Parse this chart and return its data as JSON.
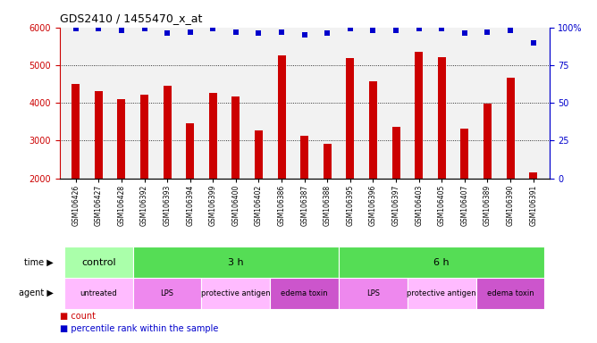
{
  "title": "GDS2410 / 1455470_x_at",
  "samples": [
    "GSM106426",
    "GSM106427",
    "GSM106428",
    "GSM106392",
    "GSM106393",
    "GSM106394",
    "GSM106399",
    "GSM106400",
    "GSM106402",
    "GSM106386",
    "GSM106387",
    "GSM106388",
    "GSM106395",
    "GSM106396",
    "GSM106397",
    "GSM106403",
    "GSM106405",
    "GSM106407",
    "GSM106389",
    "GSM106390",
    "GSM106391"
  ],
  "counts": [
    4500,
    4320,
    4100,
    4220,
    4460,
    3450,
    4260,
    4160,
    3280,
    5250,
    3130,
    2920,
    5190,
    4580,
    3370,
    5350,
    5210,
    3330,
    3970,
    4660,
    2150
  ],
  "percentile_ranks": [
    99,
    99,
    98,
    99,
    96,
    97,
    99,
    97,
    96,
    97,
    95,
    96,
    99,
    98,
    98,
    99,
    99,
    96,
    97,
    98,
    90
  ],
  "ylim": [
    2000,
    6000
  ],
  "yticks": [
    2000,
    3000,
    4000,
    5000,
    6000
  ],
  "right_yticks": [
    0,
    25,
    50,
    75,
    100
  ],
  "time_groups": [
    {
      "label": "control",
      "start": 0,
      "end": 3,
      "color": "#aaffaa"
    },
    {
      "label": "3 h",
      "start": 3,
      "end": 12,
      "color": "#55dd55"
    },
    {
      "label": "6 h",
      "start": 12,
      "end": 21,
      "color": "#55dd55"
    }
  ],
  "agent_groups": [
    {
      "label": "untreated",
      "start": 0,
      "end": 3,
      "color": "#ffbbff"
    },
    {
      "label": "LPS",
      "start": 3,
      "end": 6,
      "color": "#ee88ee"
    },
    {
      "label": "protective antigen",
      "start": 6,
      "end": 9,
      "color": "#ffbbff"
    },
    {
      "label": "edema toxin",
      "start": 9,
      "end": 12,
      "color": "#cc55cc"
    },
    {
      "label": "LPS",
      "start": 12,
      "end": 15,
      "color": "#ee88ee"
    },
    {
      "label": "protective antigen",
      "start": 15,
      "end": 18,
      "color": "#ffbbff"
    },
    {
      "label": "edema toxin",
      "start": 18,
      "end": 21,
      "color": "#cc55cc"
    }
  ],
  "bar_color": "#cc0000",
  "dot_color": "#0000cc",
  "bg_color": "#f2f2f2",
  "left_axis_color": "#cc0000",
  "right_axis_color": "#0000cc"
}
